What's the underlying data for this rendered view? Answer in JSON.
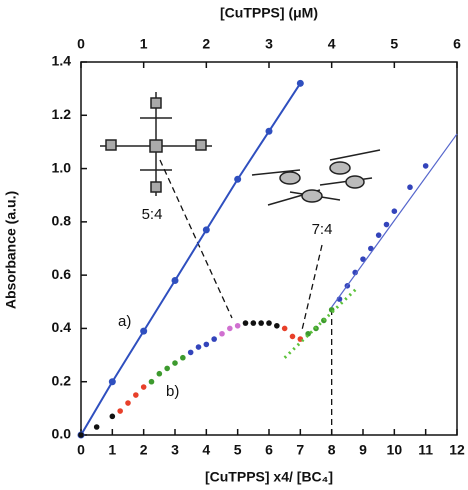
{
  "chart_data": {
    "type": "line",
    "title_top": "[CuTPPS] (μM)",
    "xlabel": "[CuTPPS] x4/ [BC₄]",
    "ylabel": "Absorbance (a.u.)",
    "xlim": [
      0,
      12
    ],
    "xticks": [
      0,
      1,
      2,
      3,
      4,
      5,
      6,
      7,
      8,
      9,
      10,
      11,
      12
    ],
    "x2lim": [
      0,
      6
    ],
    "x2ticks": [
      0,
      1,
      2,
      3,
      4,
      5,
      6
    ],
    "ylim": [
      0,
      1.4
    ],
    "yticks": [
      {
        "value": 0,
        "label": "0.0"
      },
      {
        "value": 0.2,
        "label": "0.2"
      },
      {
        "value": 0.4,
        "label": "0.4"
      },
      {
        "value": 0.6,
        "label": "0.6"
      },
      {
        "value": 0.8,
        "label": "0.8"
      },
      {
        "value": 1,
        "label": "1.0"
      },
      {
        "value": 1.2,
        "label": "1.2"
      },
      {
        "value": 1.4,
        "label": "1.4"
      }
    ],
    "series": [
      {
        "style": "line-markers",
        "color": "#2f4fbf",
        "x": [
          0,
          1,
          2,
          3,
          4,
          5,
          6,
          7
        ],
        "values": [
          0,
          0.2,
          0.39,
          0.58,
          0.77,
          0.96,
          1.14,
          1.32
        ]
      },
      {
        "style": "markers",
        "color": "#111111",
        "x": [
          0,
          0.5,
          1
        ],
        "values": [
          0,
          0.03,
          0.07
        ]
      },
      {
        "style": "markers",
        "color": "#e8402a",
        "x": [
          1.25,
          1.5,
          1.75,
          2
        ],
        "values": [
          0.09,
          0.12,
          0.15,
          0.18
        ]
      },
      {
        "style": "markers",
        "color": "#3d9a2e",
        "x": [
          2.25,
          2.5,
          2.75,
          3,
          3.25
        ],
        "values": [
          0.2,
          0.23,
          0.25,
          0.27,
          0.29
        ]
      },
      {
        "style": "markers",
        "color": "#3344bb",
        "x": [
          3.5,
          3.75,
          4,
          4.25
        ],
        "values": [
          0.31,
          0.33,
          0.34,
          0.36
        ]
      },
      {
        "style": "markers",
        "color": "#d070d0",
        "x": [
          4.5,
          4.75,
          5
        ],
        "values": [
          0.38,
          0.4,
          0.41
        ]
      },
      {
        "style": "markers",
        "color": "#111111",
        "x": [
          5.25,
          5.5,
          5.75,
          6,
          6.25
        ],
        "values": [
          0.42,
          0.42,
          0.42,
          0.42,
          0.41
        ]
      },
      {
        "style": "markers",
        "color": "#e8402a",
        "x": [
          6.5,
          6.75,
          7
        ],
        "values": [
          0.4,
          0.37,
          0.36
        ]
      },
      {
        "style": "markers",
        "color": "#3d9a2e",
        "x": [
          7.25,
          7.5,
          7.75,
          8
        ],
        "values": [
          0.38,
          0.4,
          0.43,
          0.47
        ]
      },
      {
        "style": "markers",
        "color": "#3344bb",
        "x": [
          8.25,
          8.5,
          8.75,
          9,
          9.25,
          9.5,
          9.75,
          10,
          10.5,
          11
        ],
        "values": [
          0.51,
          0.56,
          0.61,
          0.66,
          0.7,
          0.75,
          0.79,
          0.84,
          0.93,
          1.01
        ]
      },
      {
        "style": "dotted",
        "color": "#5cc23a",
        "x": [
          6.5,
          8.8
        ],
        "values": [
          0.29,
          0.55
        ]
      },
      {
        "style": "line",
        "color": "#5566cc",
        "x": [
          8,
          12
        ],
        "values": [
          0.48,
          1.13
        ]
      }
    ],
    "reference_lines": [
      {
        "x": 8,
        "y": 0.48
      }
    ],
    "annotations": [
      "a)",
      "b)",
      "5:4",
      "7:4"
    ]
  }
}
